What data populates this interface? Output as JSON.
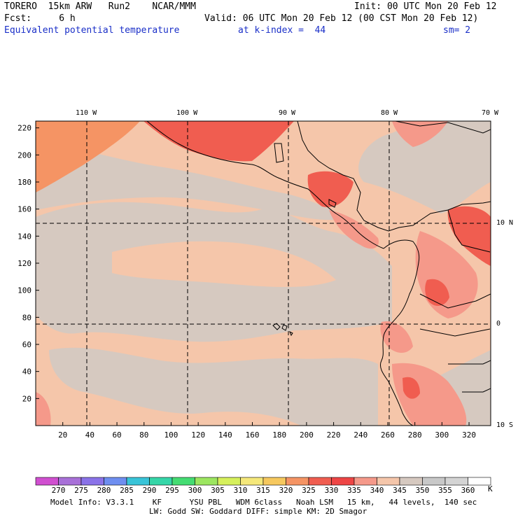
{
  "header": {
    "model": "TORERO  15km ARW   Run2    NCAR/MMM",
    "init": "Init: 00 UTC Mon 20 Feb 12",
    "fcst": "Fcst:     6 h",
    "valid": "Valid: 06 UTC Mon 20 Feb 12 (00 CST Mon 20 Feb 12)",
    "field": "Equivalent potential temperature",
    "kindex": "at k-index =  44",
    "smooth": "sm= 2"
  },
  "map": {
    "top_lon_labels": [
      "110 W",
      "100 W",
      "90 W",
      "80 W",
      "70 W"
    ],
    "right_lat_labels": [
      "10 N",
      "0",
      "10 S"
    ],
    "y_ticks": [
      "20",
      "40",
      "60",
      "80",
      "100",
      "120",
      "140",
      "160",
      "180",
      "200",
      "220"
    ],
    "x_ticks": [
      "20",
      "40",
      "60",
      "80",
      "100",
      "120",
      "140",
      "160",
      "180",
      "200",
      "220",
      "240",
      "260",
      "280",
      "300",
      "320"
    ]
  },
  "legend": {
    "values": [
      "270",
      "275",
      "280",
      "285",
      "290",
      "295",
      "300",
      "305",
      "310",
      "315",
      "320",
      "325",
      "330",
      "335",
      "340",
      "345",
      "350",
      "355",
      "360"
    ],
    "unit": "K",
    "colors": [
      "#d04fd0",
      "#a870d8",
      "#8a72e8",
      "#6e8ef0",
      "#38c4d8",
      "#35d6a8",
      "#44dc72",
      "#9ce660",
      "#d6f05c",
      "#f5e87a",
      "#f6c85e",
      "#f59464",
      "#f05d50",
      "#ee4545",
      "#f5998a",
      "#f5c6aa",
      "#d6c9c0",
      "#c8c8c8",
      "#d4d4d4",
      "#ffffff"
    ]
  },
  "footer": {
    "line1": "Model Info: V3.3.1    KF      YSU PBL   WDM 6class   Noah LSM   15 km,   44 levels,  140 sec",
    "line2": "LW: Godd SW: Goddard DIFF: simple KM: 2D Smagor"
  }
}
